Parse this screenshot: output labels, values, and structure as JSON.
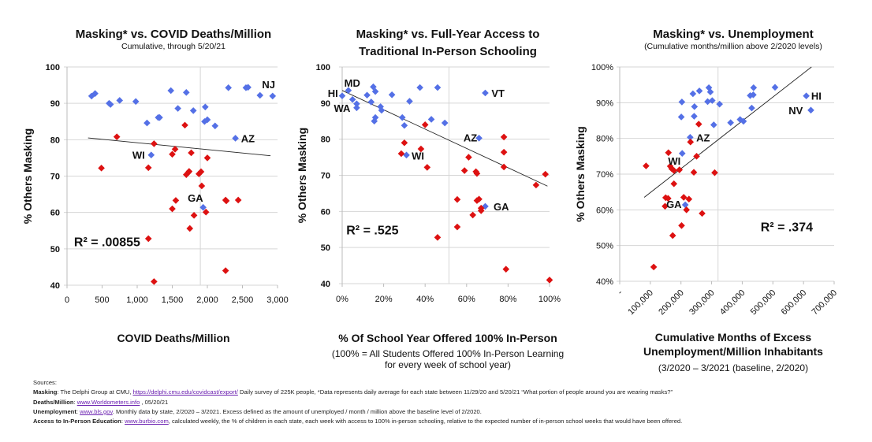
{
  "colors": {
    "blue": "#5470e6",
    "red": "#dd1111",
    "trend": "#222222",
    "grid": "#d6d6d6"
  },
  "chart_data": [
    {
      "type": "scatter",
      "title": "Masking* vs. COVID Deaths/Million",
      "subtitle": "Cumulative, through 5/20/21",
      "xlabel": [
        "COVID Deaths/Million"
      ],
      "ylabel": "% Others Masking",
      "xlim": [
        0,
        3000
      ],
      "ylim": [
        40,
        100
      ],
      "xticks": [
        0,
        500,
        1000,
        1500,
        2000,
        2500,
        3000
      ],
      "xtick_labels": [
        "0",
        "500",
        "1,000",
        "1,500",
        "2,000",
        "2,500",
        "3,000"
      ],
      "yticks": [
        40,
        50,
        60,
        70,
        80,
        90,
        100
      ],
      "ytick_labels": [
        "40",
        "50",
        "60",
        "70",
        "80",
        "90",
        "100"
      ],
      "reference_x": 1900,
      "r2_label": "R² = .00855",
      "r2_pos": [
        100,
        52
      ],
      "trendline": [
        [
          300,
          80.5
        ],
        [
          2900,
          75.6
        ]
      ],
      "series": [
        {
          "name": "blue",
          "points": [
            [
              350,
              92
            ],
            [
              400,
              92.7
            ],
            [
              600,
              90
            ],
            [
              620,
              89.7
            ],
            [
              750,
              90.8
            ],
            [
              980,
              90.5
            ],
            [
              1140,
              84.6
            ],
            [
              1300,
              86.1
            ],
            [
              1320,
              86.1
            ],
            [
              1480,
              93.5
            ],
            [
              1580,
              88.6
            ],
            [
              1700,
              93
            ],
            [
              1800,
              88
            ],
            [
              1960,
              85
            ],
            [
              2000,
              85.5
            ],
            [
              1970,
              89
            ],
            [
              2110,
              83.8
            ],
            [
              2300,
              94.3
            ],
            [
              2550,
              94.3
            ],
            [
              2580,
              94.4
            ],
            [
              2750,
              92.2
            ],
            [
              2930,
              92
            ],
            [
              2400,
              80.4
            ],
            [
              1200,
              75.8
            ],
            [
              1940,
              61.4
            ]
          ]
        },
        {
          "name": "red",
          "points": [
            [
              710,
              80.8
            ],
            [
              490,
              72.2
            ],
            [
              1240,
              78.9
            ],
            [
              1160,
              72.3
            ],
            [
              1540,
              77.4
            ],
            [
              1500,
              76
            ],
            [
              1680,
              84
            ],
            [
              1770,
              76.4
            ],
            [
              2000,
              75
            ],
            [
              1700,
              70.4
            ],
            [
              1730,
              71
            ],
            [
              1740,
              71.3
            ],
            [
              1880,
              70.6
            ],
            [
              1910,
              71.2
            ],
            [
              1920,
              67.3
            ],
            [
              2260,
              63.4
            ],
            [
              2270,
              63.2
            ],
            [
              2440,
              63.4
            ],
            [
              1550,
              63.3
            ],
            [
              1500,
              61
            ],
            [
              1810,
              59.2
            ],
            [
              1980,
              60.1
            ],
            [
              1750,
              55.6
            ],
            [
              1160,
              52.8
            ],
            [
              2260,
              44
            ],
            [
              1240,
              41
            ]
          ]
        }
      ],
      "labels": [
        {
          "text": "NJ",
          "x": 2780,
          "y": 95.2,
          "anchor": "start"
        },
        {
          "text": "AZ",
          "x": 2480,
          "y": 80.4,
          "anchor": "start"
        },
        {
          "text": "WI",
          "x": 1110,
          "y": 75.8,
          "anchor": "end"
        },
        {
          "text": "GA",
          "x": 1720,
          "y": 64,
          "anchor": "start"
        }
      ]
    },
    {
      "type": "scatter",
      "title": [
        "Masking* vs. Full-Year Access to",
        "Traditional In-Person Schooling"
      ],
      "xlabel": [
        "% Of School Year Offered 100% In-Person",
        "(100% = All Students Offered 100% In-Person Learning",
        "for every week of school year)"
      ],
      "ylabel": "% Others Masking",
      "xlim": [
        0,
        100
      ],
      "ylim": [
        40,
        100
      ],
      "xticks": [
        0,
        20,
        40,
        60,
        80,
        100
      ],
      "xtick_labels": [
        "0%",
        "20%",
        "40%",
        "60%",
        "80%",
        "100%"
      ],
      "yticks": [
        40,
        50,
        60,
        70,
        80,
        90,
        100
      ],
      "ytick_labels": [
        "40",
        "50",
        "60",
        "70",
        "80",
        "90",
        "100"
      ],
      "reference_x": 51.5,
      "r2_label": "R² = .525",
      "r2_pos": [
        2,
        55
      ],
      "trendline": [
        [
          0,
          93.5
        ],
        [
          99,
          67
        ]
      ],
      "series": [
        {
          "name": "blue",
          "points": [
            [
              0,
              92
            ],
            [
              3,
              93.5
            ],
            [
              5,
              91
            ],
            [
              7,
              89.8
            ],
            [
              7,
              88.7
            ],
            [
              12,
              92.2
            ],
            [
              14,
              90.3
            ],
            [
              15,
              94.5
            ],
            [
              16,
              93.2
            ],
            [
              15.5,
              85
            ],
            [
              16,
              86
            ],
            [
              18.5,
              89
            ],
            [
              19,
              88
            ],
            [
              24,
              92.3
            ],
            [
              29,
              86
            ],
            [
              30,
              83.8
            ],
            [
              32.5,
              90.5
            ],
            [
              37.5,
              94.3
            ],
            [
              43,
              85.5
            ],
            [
              46,
              94.3
            ],
            [
              49.5,
              84.5
            ],
            [
              69,
              92.8
            ],
            [
              66,
              80.3
            ],
            [
              31,
              75.6
            ],
            [
              69,
              61.4
            ]
          ]
        },
        {
          "name": "red",
          "points": [
            [
              40,
              84
            ],
            [
              30,
              79
            ],
            [
              28.5,
              76
            ],
            [
              38,
              77.3
            ],
            [
              41,
              72.2
            ],
            [
              46,
              52.8
            ],
            [
              55.5,
              63.3
            ],
            [
              55.5,
              55.7
            ],
            [
              59,
              71.3
            ],
            [
              61,
              75
            ],
            [
              63,
              59
            ],
            [
              64.5,
              71
            ],
            [
              65,
              70.5
            ],
            [
              65,
              63
            ],
            [
              66,
              63.4
            ],
            [
              67,
              60.9
            ],
            [
              67,
              60.2
            ],
            [
              78,
              80.6
            ],
            [
              78,
              76.4
            ],
            [
              78,
              72.3
            ],
            [
              79,
              44
            ],
            [
              93.5,
              67.3
            ],
            [
              98,
              70.3
            ],
            [
              100,
              41
            ]
          ]
        }
      ],
      "labels": [
        {
          "text": "HI",
          "x": -2,
          "y": 92.8,
          "anchor": "end"
        },
        {
          "text": "MD",
          "x": 1,
          "y": 95.6,
          "anchor": "start"
        },
        {
          "text": "WA",
          "x": -4,
          "y": 88.7,
          "anchor": "start"
        },
        {
          "text": "VT",
          "x": 72,
          "y": 92.8,
          "anchor": "start"
        },
        {
          "text": "AZ",
          "x": 58.5,
          "y": 80.5,
          "anchor": "start"
        },
        {
          "text": "WI",
          "x": 33.5,
          "y": 75.5,
          "anchor": "start"
        },
        {
          "text": "GA",
          "x": 73,
          "y": 61.4,
          "anchor": "start"
        }
      ]
    },
    {
      "type": "scatter",
      "title": "Masking* vs. Unemployment",
      "subtitle": "(Cumulative months/million above 2/2020 levels)",
      "xlabel": [
        "Cumulative Months of Excess",
        "Unemployment/Million Inhabitants",
        "(3/2020 – 3/2021 (baseline, 2/2020)"
      ],
      "ylabel": "% Others Masking",
      "xlim": [
        0,
        700000
      ],
      "ylim": [
        40,
        100
      ],
      "xticks": [
        0,
        100000,
        200000,
        300000,
        400000,
        500000,
        600000,
        700000
      ],
      "xtick_labels": [
        "-",
        "100,000",
        "200,000",
        "300,000",
        "400,000",
        "500,000",
        "600,000",
        "700,000"
      ],
      "yticks": [
        40,
        50,
        60,
        70,
        80,
        90,
        100
      ],
      "ytick_labels": [
        "40%",
        "50%",
        "60%",
        "70%",
        "80%",
        "90%",
        "100%"
      ],
      "reference_x": 321000,
      "r2_label": "R² = .374",
      "r2_pos": [
        460000,
        55.3
      ],
      "trendline": [
        [
          80000,
          63.5
        ],
        [
          626000,
          100
        ]
      ],
      "series": [
        {
          "name": "blue",
          "points": [
            [
              203000,
              90.2
            ],
            [
              201000,
              86
            ],
            [
              239000,
              92.5
            ],
            [
              244000,
              88.9
            ],
            [
              243000,
              86.2
            ],
            [
              260000,
              93.3
            ],
            [
              291000,
              94.2
            ],
            [
              296000,
              93
            ],
            [
              287000,
              90.3
            ],
            [
              302000,
              90.6
            ],
            [
              307000,
              83.8
            ],
            [
              326000,
              89.6
            ],
            [
              362000,
              84.4
            ],
            [
              393000,
              85.3
            ],
            [
              404000,
              84.8
            ],
            [
              426000,
              92
            ],
            [
              436000,
              92.2
            ],
            [
              437000,
              94.2
            ],
            [
              431000,
              88.5
            ],
            [
              507000,
              94.3
            ],
            [
              609000,
              91.9
            ],
            [
              624000,
              87.9
            ],
            [
              230000,
              80.3
            ],
            [
              204000,
              75.8
            ],
            [
              214000,
              61.4
            ]
          ]
        },
        {
          "name": "red",
          "points": [
            [
              86000,
              72.3
            ],
            [
              111000,
              44
            ],
            [
              159000,
              76
            ],
            [
              165000,
              72.2
            ],
            [
              170000,
              71.5
            ],
            [
              177000,
              71
            ],
            [
              195000,
              71.2
            ],
            [
              177000,
              67.3
            ],
            [
              231000,
              79
            ],
            [
              258000,
              84
            ],
            [
              251000,
              75
            ],
            [
              242000,
              70.5
            ],
            [
              310000,
              70.4
            ],
            [
              150000,
              63.4
            ],
            [
              158000,
              63.2
            ],
            [
              148000,
              61
            ],
            [
              209000,
              63.5
            ],
            [
              226000,
              63
            ],
            [
              218000,
              60
            ],
            [
              269000,
              59
            ],
            [
              202000,
              55.6
            ],
            [
              173000,
              52.8
            ]
          ]
        }
      ],
      "labels": [
        {
          "text": "HI",
          "x": 625000,
          "y": 91.9,
          "anchor": "start"
        },
        {
          "text": "NV",
          "x": 598000,
          "y": 87.9,
          "anchor": "end"
        },
        {
          "text": "AZ",
          "x": 250000,
          "y": 80.3,
          "anchor": "start"
        },
        {
          "text": "WI",
          "x": 158000,
          "y": 73.8,
          "anchor": "start"
        },
        {
          "text": "GA",
          "x": 152000,
          "y": 61.6,
          "anchor": "start"
        }
      ]
    }
  ],
  "sources": {
    "heading": "Sources:",
    "masking_label": "Masking",
    "masking_text1": ": The Delphi Group at CMU, ",
    "masking_link": "https://delphi.cmu.edu/covidcast/export/",
    "masking_text2": " Daily survey of 225K people, *Data represents daily average for each state between 11/29/20 and 5/20/21 “What portion of people around you are wearing masks?”",
    "deaths_label": "Deaths/Million",
    "deaths_text1": ": ",
    "deaths_link": "www.Worldometers.info",
    "deaths_text2": " , 05/20/21",
    "unemp_label": "Unemployment",
    "unemp_text1": ": ",
    "unemp_link": "www.bls.gov",
    "unemp_text2": ". Monthly data by state, 2/2020 – 3/2021. Excess defined as the amount of unemployed / month / million above the baseline level of 2/2020.",
    "access_label": "Access to In-Person Education",
    "access_text1": ": ",
    "access_link": "www.burbio.com",
    "access_text2": ", calculated weekly, the % of children in each state, each week with access to 100% in-person schooling, relative to the expected number of in-person school weeks that would have been offered."
  }
}
